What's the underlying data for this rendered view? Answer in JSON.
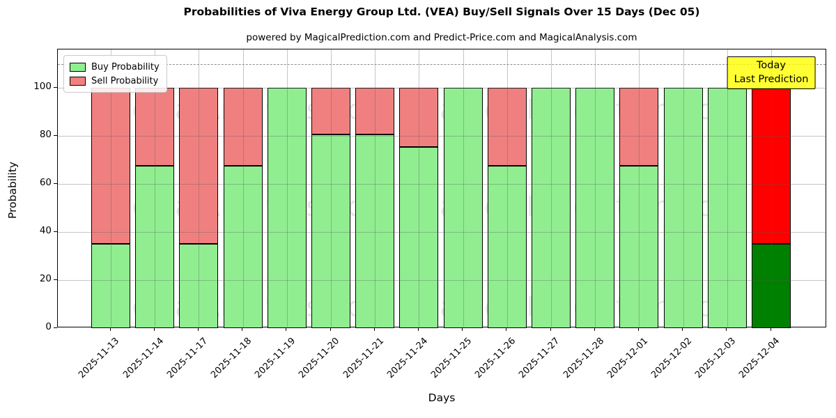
{
  "title": "Probabilities of Viva Energy Group Ltd. (VEA) Buy/Sell Signals Over 15 Days (Dec 05)",
  "subtitle": "powered by MagicalPrediction.com and Predict-Price.com and MagicalAnalysis.com",
  "watermarks": {
    "analysis": "MagicalAnalysis.com",
    "prediction": "MagicalPrediction.com"
  },
  "annotation": {
    "line1": "Today",
    "line2": "Last Prediction"
  },
  "legend": [
    {
      "label": "Buy Probability",
      "color": "#90EE90"
    },
    {
      "label": "Sell Probability",
      "color": "#F08080"
    }
  ],
  "colors": {
    "buy": "#90EE90",
    "sell": "#F08080",
    "today_buy": "#008000",
    "today_sell": "#FF0000",
    "annotation_bg": "#FFFF00",
    "grid": "#aaaaaa",
    "edge": "#000000"
  },
  "chart_data": {
    "type": "bar",
    "stacked": true,
    "title": "Probabilities of Viva Energy Group Ltd. (VEA) Buy/Sell Signals Over 15 Days (Dec 05)",
    "xlabel": "Days",
    "ylabel": "Probability",
    "categories": [
      "2025-11-13",
      "2025-11-14",
      "2025-11-17",
      "2025-11-18",
      "2025-11-19",
      "2025-11-20",
      "2025-11-21",
      "2025-11-24",
      "2025-11-25",
      "2025-11-26",
      "2025-11-27",
      "2025-11-28",
      "2025-12-01",
      "2025-12-02",
      "2025-12-03",
      "2025-12-04"
    ],
    "series": [
      {
        "name": "Buy Probability",
        "color": "#90EE90",
        "values": [
          35,
          67.5,
          35,
          67.5,
          100,
          80.5,
          80.5,
          75.5,
          100,
          67.5,
          100,
          100,
          67.5,
          100,
          100,
          35
        ]
      },
      {
        "name": "Sell Probability",
        "color": "#F08080",
        "values": [
          65,
          32.5,
          65,
          32.5,
          0,
          19.5,
          19.5,
          24.5,
          0,
          32.5,
          0,
          0,
          32.5,
          0,
          0,
          65
        ]
      }
    ],
    "today_index": 15,
    "today_colors": {
      "buy": "#008000",
      "sell": "#FF0000"
    },
    "yticks": [
      0,
      20,
      40,
      60,
      80,
      100
    ],
    "ylim": [
      0,
      116
    ],
    "dashed_line_y": 110,
    "grid": true,
    "legend_position": "upper left"
  }
}
